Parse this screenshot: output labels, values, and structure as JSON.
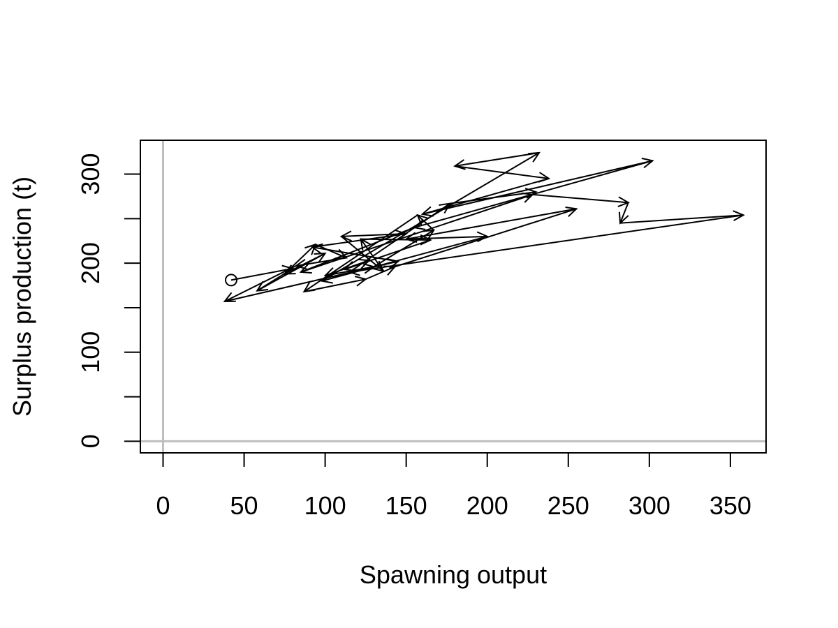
{
  "chart_data": {
    "type": "line",
    "title": "",
    "xlabel": "Spawning output",
    "ylabel": "Surplus production (t)",
    "xlim": [
      -14,
      372
    ],
    "ylim": [
      -13,
      338
    ],
    "x_ticks": [
      0,
      50,
      100,
      150,
      200,
      250,
      300,
      350
    ],
    "y_ticks": [
      0,
      50,
      100,
      150,
      200,
      250,
      300
    ],
    "y_tick_labels": [
      "0",
      "",
      "100",
      "",
      "200",
      "",
      "300"
    ],
    "grid": false,
    "reference_lines": {
      "x0": true,
      "y0": true,
      "color": "#bebebe"
    },
    "start_marker": "open-circle",
    "arrows": true,
    "series": [
      {
        "color": "#000000",
        "x": [
          42,
          80,
          58,
          100,
          75,
          94,
          113,
          82,
          38,
          145,
          92,
          150,
          110,
          136,
          122,
          165,
          112,
          127,
          100,
          130,
          167,
          157,
          87,
          125,
          143,
          255,
          150,
          200,
          98,
          232,
          180,
          238,
          160,
          302,
          155,
          85,
          228,
          287,
          282,
          358,
          115,
          177,
          230
        ],
        "y": [
          181,
          194,
          169,
          211,
          188,
          221,
          206,
          197,
          157,
          202,
          218,
          233,
          230,
          191,
          227,
          226,
          193,
          203,
          186,
          196,
          237,
          254,
          168,
          182,
          196,
          261,
          227,
          230,
          180,
          324,
          309,
          295,
          255,
          315,
          240,
          190,
          277,
          268,
          245,
          254,
          190,
          267,
          280
        ]
      }
    ]
  }
}
